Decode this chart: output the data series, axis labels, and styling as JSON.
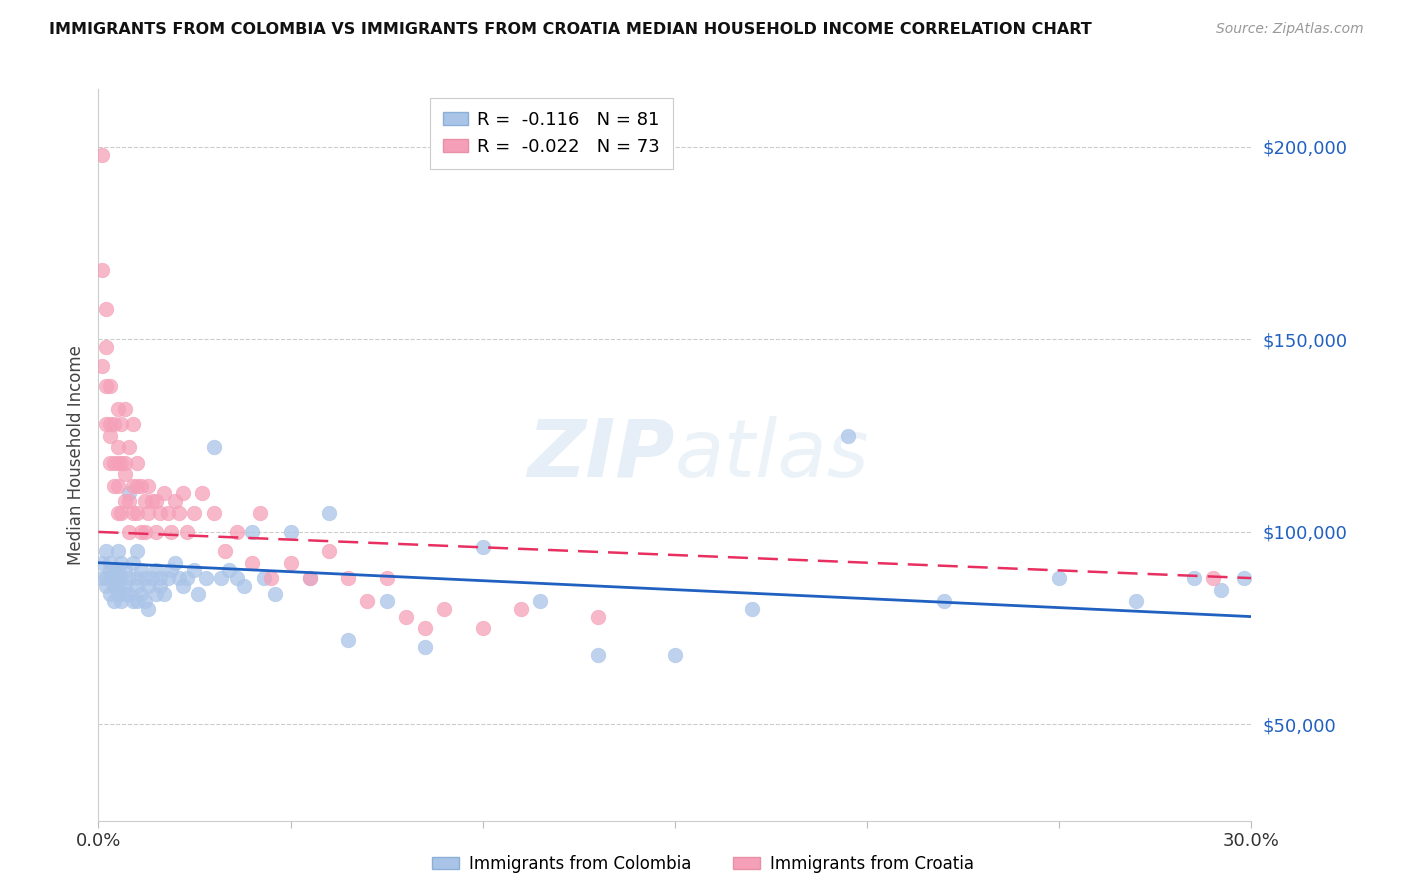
{
  "title": "IMMIGRANTS FROM COLOMBIA VS IMMIGRANTS FROM CROATIA MEDIAN HOUSEHOLD INCOME CORRELATION CHART",
  "source": "Source: ZipAtlas.com",
  "ylabel": "Median Household Income",
  "yticks": [
    50000,
    100000,
    150000,
    200000
  ],
  "ytick_labels": [
    "$50,000",
    "$100,000",
    "$150,000",
    "$200,000"
  ],
  "ymin": 25000,
  "ymax": 215000,
  "xmin": 0.0,
  "xmax": 0.3,
  "colombia_color": "#aac4e8",
  "croatia_color": "#f5a0b8",
  "colombia_line_color": "#2060c0",
  "croatia_line_color": "#e83060",
  "R_colombia": -0.116,
  "N_colombia": 81,
  "R_croatia": -0.022,
  "N_croatia": 73,
  "watermark": "ZIPatlas",
  "colombia_x": [
    0.001,
    0.001,
    0.002,
    0.002,
    0.002,
    0.003,
    0.003,
    0.003,
    0.003,
    0.004,
    0.004,
    0.004,
    0.004,
    0.004,
    0.005,
    0.005,
    0.005,
    0.005,
    0.005,
    0.006,
    0.006,
    0.006,
    0.007,
    0.007,
    0.007,
    0.008,
    0.008,
    0.008,
    0.009,
    0.009,
    0.01,
    0.01,
    0.01,
    0.01,
    0.011,
    0.011,
    0.012,
    0.012,
    0.013,
    0.013,
    0.014,
    0.015,
    0.015,
    0.016,
    0.016,
    0.017,
    0.018,
    0.019,
    0.02,
    0.021,
    0.022,
    0.023,
    0.025,
    0.026,
    0.028,
    0.03,
    0.032,
    0.034,
    0.036,
    0.038,
    0.04,
    0.043,
    0.046,
    0.05,
    0.055,
    0.06,
    0.065,
    0.075,
    0.085,
    0.1,
    0.115,
    0.13,
    0.15,
    0.17,
    0.195,
    0.22,
    0.25,
    0.27,
    0.285,
    0.292,
    0.298
  ],
  "colombia_y": [
    92000,
    88000,
    95000,
    86000,
    88000,
    90000,
    88000,
    84000,
    92000,
    87000,
    88000,
    90000,
    82000,
    86000,
    95000,
    88000,
    84000,
    90000,
    86000,
    92000,
    88000,
    82000,
    90000,
    86000,
    84000,
    110000,
    88000,
    84000,
    92000,
    82000,
    95000,
    88000,
    86000,
    82000,
    90000,
    84000,
    88000,
    82000,
    86000,
    80000,
    88000,
    90000,
    84000,
    88000,
    86000,
    84000,
    88000,
    90000,
    92000,
    88000,
    86000,
    88000,
    90000,
    84000,
    88000,
    122000,
    88000,
    90000,
    88000,
    86000,
    100000,
    88000,
    84000,
    100000,
    88000,
    105000,
    72000,
    82000,
    70000,
    96000,
    82000,
    68000,
    68000,
    80000,
    125000,
    82000,
    88000,
    82000,
    88000,
    85000,
    88000
  ],
  "croatia_x": [
    0.001,
    0.001,
    0.001,
    0.002,
    0.002,
    0.002,
    0.002,
    0.003,
    0.003,
    0.003,
    0.003,
    0.004,
    0.004,
    0.004,
    0.005,
    0.005,
    0.005,
    0.005,
    0.005,
    0.006,
    0.006,
    0.006,
    0.007,
    0.007,
    0.007,
    0.007,
    0.008,
    0.008,
    0.008,
    0.009,
    0.009,
    0.009,
    0.01,
    0.01,
    0.01,
    0.011,
    0.011,
    0.012,
    0.012,
    0.013,
    0.013,
    0.014,
    0.015,
    0.015,
    0.016,
    0.017,
    0.018,
    0.019,
    0.02,
    0.021,
    0.022,
    0.023,
    0.025,
    0.027,
    0.03,
    0.033,
    0.036,
    0.04,
    0.042,
    0.045,
    0.05,
    0.055,
    0.06,
    0.065,
    0.07,
    0.075,
    0.08,
    0.085,
    0.09,
    0.1,
    0.11,
    0.13,
    0.29
  ],
  "croatia_y": [
    198000,
    168000,
    143000,
    158000,
    138000,
    128000,
    148000,
    138000,
    128000,
    125000,
    118000,
    128000,
    118000,
    112000,
    132000,
    122000,
    118000,
    112000,
    105000,
    128000,
    118000,
    105000,
    132000,
    118000,
    108000,
    115000,
    122000,
    108000,
    100000,
    128000,
    112000,
    105000,
    118000,
    112000,
    105000,
    112000,
    100000,
    108000,
    100000,
    112000,
    105000,
    108000,
    108000,
    100000,
    105000,
    110000,
    105000,
    100000,
    108000,
    105000,
    110000,
    100000,
    105000,
    110000,
    105000,
    95000,
    100000,
    92000,
    105000,
    88000,
    92000,
    88000,
    95000,
    88000,
    82000,
    88000,
    78000,
    75000,
    80000,
    75000,
    80000,
    78000,
    88000
  ]
}
